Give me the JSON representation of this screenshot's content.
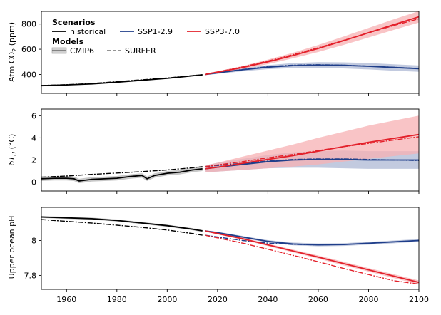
{
  "chart_data": [
    {
      "type": "line",
      "ylabel_main": "Atm CO",
      "ylabel_sub": "2",
      "ylabel_unit": " (ppm)",
      "xlim": [
        1950,
        2100
      ],
      "ylim": [
        250,
        900
      ],
      "yticks": [
        400,
        600,
        800
      ],
      "series": [
        {
          "name": "historical",
          "model": "CMIP6",
          "x": [
            1950,
            1960,
            1970,
            1980,
            1990,
            2000,
            2010,
            2014
          ],
          "y": [
            311,
            317,
            325,
            339,
            354,
            369,
            389,
            397
          ],
          "spread": [
            3,
            3,
            3,
            3,
            3,
            3,
            3,
            3
          ]
        },
        {
          "name": "historical",
          "model": "SURFER",
          "x": [
            1950,
            1960,
            1970,
            1980,
            1990,
            2000,
            2010,
            2014
          ],
          "y": [
            313,
            319,
            328,
            343,
            358,
            372,
            391,
            398
          ]
        },
        {
          "name": "SSP1-2.9",
          "model": "CMIP6",
          "x": [
            2015,
            2020,
            2030,
            2040,
            2050,
            2060,
            2070,
            2080,
            2090,
            2100
          ],
          "y": [
            400,
            413,
            437,
            458,
            470,
            474,
            472,
            465,
            455,
            446
          ],
          "spread": [
            6,
            8,
            12,
            16,
            20,
            23,
            24,
            25,
            25,
            25
          ]
        },
        {
          "name": "SSP1-2.9",
          "model": "SURFER",
          "x": [
            2015,
            2020,
            2030,
            2040,
            2050,
            2060,
            2070,
            2080,
            2090,
            2100
          ],
          "y": [
            401,
            414,
            440,
            462,
            474,
            477,
            474,
            466,
            457,
            447
          ]
        },
        {
          "name": "SSP3-7.0",
          "model": "CMIP6",
          "x": [
            2015,
            2020,
            2030,
            2040,
            2050,
            2060,
            2070,
            2080,
            2090,
            2100
          ],
          "y": [
            400,
            418,
            455,
            500,
            550,
            606,
            667,
            731,
            795,
            857
          ],
          "spread": [
            6,
            8,
            12,
            18,
            22,
            28,
            33,
            38,
            42,
            45
          ]
        },
        {
          "name": "SSP3-7.0",
          "model": "SURFER",
          "x": [
            2015,
            2020,
            2030,
            2040,
            2050,
            2060,
            2070,
            2080,
            2090,
            2100
          ],
          "y": [
            401,
            420,
            460,
            506,
            557,
            612,
            670,
            730,
            788,
            842
          ]
        }
      ]
    },
    {
      "type": "line",
      "ylabel_main": "δT",
      "ylabel_sub": "U",
      "ylabel_unit": " (°C)",
      "xlim": [
        1950,
        2100
      ],
      "ylim": [
        -0.8,
        6.6
      ],
      "yticks": [
        0,
        2,
        4,
        6
      ],
      "series": [
        {
          "name": "historical",
          "model": "CMIP6",
          "x": [
            1950,
            1955,
            1960,
            1963,
            1965,
            1970,
            1975,
            1980,
            1985,
            1990,
            1992,
            1995,
            2000,
            2005,
            2010,
            2014
          ],
          "y": [
            0.3,
            0.35,
            0.35,
            0.3,
            0.1,
            0.25,
            0.3,
            0.35,
            0.5,
            0.6,
            0.3,
            0.6,
            0.8,
            0.9,
            1.1,
            1.2
          ],
          "spread": [
            0.2,
            0.2,
            0.2,
            0.2,
            0.2,
            0.2,
            0.2,
            0.2,
            0.2,
            0.2,
            0.2,
            0.2,
            0.2,
            0.2,
            0.2,
            0.2
          ]
        },
        {
          "name": "historical",
          "model": "SURFER",
          "x": [
            1950,
            1960,
            1970,
            1980,
            1990,
            2000,
            2010,
            2014
          ],
          "y": [
            0.45,
            0.55,
            0.7,
            0.82,
            0.95,
            1.1,
            1.3,
            1.4
          ]
        },
        {
          "name": "SSP1-2.9",
          "model": "CMIP6",
          "x": [
            2015,
            2020,
            2030,
            2040,
            2050,
            2060,
            2070,
            2080,
            2090,
            2100
          ],
          "y": [
            1.2,
            1.35,
            1.6,
            1.85,
            2.0,
            2.05,
            2.05,
            2.0,
            2.0,
            2.0
          ],
          "spread": [
            0.3,
            0.4,
            0.5,
            0.6,
            0.7,
            0.75,
            0.8,
            0.8,
            0.8,
            0.8
          ]
        },
        {
          "name": "SSP1-2.9",
          "model": "SURFER",
          "x": [
            2015,
            2020,
            2030,
            2040,
            2050,
            2060,
            2070,
            2080,
            2090,
            2100
          ],
          "y": [
            1.4,
            1.5,
            1.7,
            1.9,
            2.05,
            2.1,
            2.1,
            2.05,
            2.0,
            1.95
          ]
        },
        {
          "name": "SSP3-7.0",
          "model": "CMIP6",
          "x": [
            2015,
            2020,
            2030,
            2040,
            2050,
            2060,
            2070,
            2080,
            2090,
            2100
          ],
          "y": [
            1.2,
            1.35,
            1.7,
            2.05,
            2.4,
            2.8,
            3.2,
            3.6,
            3.95,
            4.3
          ],
          "spread": [
            0.3,
            0.4,
            0.6,
            0.8,
            1.0,
            1.2,
            1.35,
            1.5,
            1.6,
            1.7
          ]
        },
        {
          "name": "SSP3-7.0",
          "model": "SURFER",
          "x": [
            2015,
            2020,
            2030,
            2040,
            2050,
            2060,
            2070,
            2080,
            2090,
            2100
          ],
          "y": [
            1.4,
            1.55,
            1.85,
            2.2,
            2.5,
            2.85,
            3.2,
            3.5,
            3.8,
            4.1
          ]
        }
      ]
    },
    {
      "type": "line",
      "ylabel_main": "Upper ocean pH",
      "ylabel_sub": "",
      "ylabel_unit": "",
      "xlabel_ticks": [
        1960,
        1980,
        2000,
        2020,
        2040,
        2060,
        2080,
        2100
      ],
      "xlim": [
        1950,
        2100
      ],
      "ylim": [
        7.72,
        8.19
      ],
      "yticks": [
        7.8,
        8.0
      ],
      "series": [
        {
          "name": "historical",
          "model": "CMIP6",
          "x": [
            1950,
            1960,
            1970,
            1980,
            1990,
            2000,
            2010,
            2014
          ],
          "y": [
            8.135,
            8.13,
            8.125,
            8.115,
            8.1,
            8.085,
            8.065,
            8.055
          ],
          "spread": [
            0.006,
            0.006,
            0.006,
            0.006,
            0.006,
            0.006,
            0.006,
            0.006
          ]
        },
        {
          "name": "historical",
          "model": "SURFER",
          "x": [
            1950,
            1960,
            1970,
            1980,
            1990,
            2000,
            2010,
            2014
          ],
          "y": [
            8.12,
            8.11,
            8.1,
            8.088,
            8.075,
            8.06,
            8.04,
            8.03
          ]
        },
        {
          "name": "SSP1-2.9",
          "model": "CMIP6",
          "x": [
            2015,
            2020,
            2030,
            2040,
            2050,
            2060,
            2070,
            2080,
            2090,
            2100
          ],
          "y": [
            8.055,
            8.045,
            8.02,
            7.995,
            7.98,
            7.975,
            7.977,
            7.984,
            7.992,
            8.0
          ],
          "spread": [
            0.004,
            0.005,
            0.006,
            0.007,
            0.008,
            0.008,
            0.008,
            0.008,
            0.008,
            0.008
          ]
        },
        {
          "name": "SSP1-2.9",
          "model": "SURFER",
          "x": [
            2015,
            2020,
            2030,
            2040,
            2050,
            2060,
            2070,
            2080,
            2090,
            2100
          ],
          "y": [
            8.03,
            8.02,
            8.0,
            7.985,
            7.978,
            7.975,
            7.977,
            7.984,
            7.992,
            8.0
          ]
        },
        {
          "name": "SSP3-7.0",
          "model": "CMIP6",
          "x": [
            2015,
            2020,
            2030,
            2040,
            2050,
            2060,
            2070,
            2080,
            2090,
            2100
          ],
          "y": [
            8.055,
            8.04,
            8.01,
            7.975,
            7.94,
            7.905,
            7.868,
            7.832,
            7.796,
            7.76
          ],
          "spread": [
            0.004,
            0.005,
            0.006,
            0.007,
            0.008,
            0.009,
            0.01,
            0.01,
            0.011,
            0.011
          ]
        },
        {
          "name": "SSP3-7.0",
          "model": "SURFER",
          "x": [
            2015,
            2020,
            2030,
            2040,
            2050,
            2060,
            2070,
            2080,
            2090,
            2100
          ],
          "y": [
            8.03,
            8.015,
            7.985,
            7.95,
            7.915,
            7.878,
            7.84,
            7.805,
            7.77,
            7.75
          ]
        }
      ]
    }
  ],
  "legend": {
    "scenarios_title": "Scenarios",
    "scenarios": [
      {
        "label": "historical",
        "color": "#000000"
      },
      {
        "label": "SSP1-2.9",
        "color": "#1f3e8a"
      },
      {
        "label": "SSP3-7.0",
        "color": "#e3202a"
      }
    ],
    "models_title": "Models",
    "models": [
      {
        "label": "CMIP6"
      },
      {
        "label": "SURFER"
      }
    ]
  },
  "colors": {
    "historical": "#000000",
    "SSP1-2.9": "#1f3e8a",
    "SSP3-7.0": "#e3202a",
    "historical_band": "#b4b4b4",
    "SSP1-2.9_band": "#aeb8d4",
    "SSP3-7.0_band": "#f7b0b3"
  }
}
